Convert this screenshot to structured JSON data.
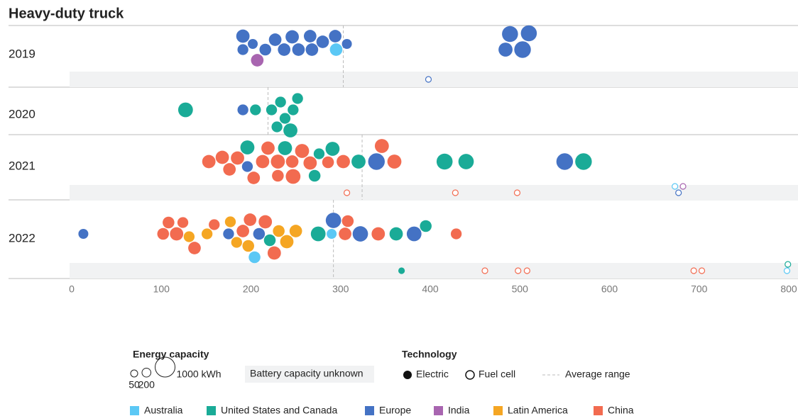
{
  "chart_data": {
    "type": "beeswarm",
    "title": "Heavy-duty truck",
    "xlim": [
      0,
      800
    ],
    "xticks": [
      0,
      100,
      200,
      300,
      400,
      500,
      600,
      700,
      800
    ],
    "regions": [
      {
        "name": "Australia",
        "color": "#5bc8f5"
      },
      {
        "name": "United States and Canada",
        "color": "#1aab97"
      },
      {
        "name": "Europe",
        "color": "#4472c4"
      },
      {
        "name": "India",
        "color": "#a865b0"
      },
      {
        "name": "Latin America",
        "color": "#f5a623"
      },
      {
        "name": "China",
        "color": "#f26b50"
      }
    ],
    "size_title": "Energy capacity",
    "size_legend": [
      50,
      200,
      {
        "value": 1000,
        "label": "1000 kWh"
      }
    ],
    "unknown_label": "Battery capacity unknown",
    "technology_title": "Technology",
    "technologies": [
      "Electric",
      "Fuel cell"
    ],
    "average_label": "Average range",
    "rows": [
      {
        "year": "2019",
        "average": 303,
        "points": [
          {
            "range": 191,
            "capacity": 300,
            "region": "Europe"
          },
          {
            "range": 202,
            "capacity": 250,
            "region": "Europe"
          },
          {
            "range": 216,
            "capacity": 350,
            "region": "Europe"
          },
          {
            "range": 237,
            "capacity": 400,
            "region": "Europe"
          },
          {
            "range": 253,
            "capacity": 400,
            "region": "Europe"
          },
          {
            "range": 268,
            "capacity": 400,
            "region": "Europe"
          },
          {
            "range": 295,
            "capacity": 400,
            "region": "Australia"
          },
          {
            "range": 191,
            "capacity": 450,
            "region": "Europe"
          },
          {
            "range": 207,
            "capacity": 400,
            "region": "India"
          },
          {
            "range": 227,
            "capacity": 400,
            "region": "Europe"
          },
          {
            "range": 246,
            "capacity": 450,
            "region": "Europe"
          },
          {
            "range": 266,
            "capacity": 400,
            "region": "Europe"
          },
          {
            "range": 280,
            "capacity": 400,
            "region": "Europe"
          },
          {
            "range": 294,
            "capacity": 400,
            "region": "Europe"
          },
          {
            "range": 307,
            "capacity": 250,
            "region": "Europe"
          },
          {
            "range": 484,
            "capacity": 500,
            "region": "Europe"
          },
          {
            "range": 503,
            "capacity": 700,
            "region": "Europe"
          },
          {
            "range": 489,
            "capacity": 650,
            "region": "Europe"
          },
          {
            "range": 510,
            "capacity": 650,
            "region": "Europe"
          }
        ],
        "unknown": [
          {
            "range": 398,
            "region": "Europe",
            "technology": "Fuel cell"
          }
        ]
      },
      {
        "year": "2020",
        "average": 219,
        "points": [
          {
            "range": 127,
            "capacity": 550,
            "region": "United States and Canada"
          },
          {
            "range": 191,
            "capacity": 300,
            "region": "Europe"
          },
          {
            "range": 205,
            "capacity": 300,
            "region": "United States and Canada"
          },
          {
            "range": 223,
            "capacity": 300,
            "region": "United States and Canada"
          },
          {
            "range": 233,
            "capacity": 300,
            "region": "United States and Canada"
          },
          {
            "range": 247,
            "capacity": 300,
            "region": "United States and Canada"
          },
          {
            "range": 238,
            "capacity": 300,
            "region": "United States and Canada"
          },
          {
            "range": 252,
            "capacity": 300,
            "region": "United States and Canada"
          },
          {
            "range": 229,
            "capacity": 300,
            "region": "United States and Canada"
          },
          {
            "range": 244,
            "capacity": 500,
            "region": "United States and Canada"
          }
        ],
        "unknown": []
      },
      {
        "year": "2021",
        "average": 324,
        "points": [
          {
            "range": 153,
            "capacity": 450,
            "region": "China"
          },
          {
            "range": 168,
            "capacity": 450,
            "region": "China"
          },
          {
            "range": 176,
            "capacity": 400,
            "region": "China"
          },
          {
            "range": 185,
            "capacity": 450,
            "region": "China"
          },
          {
            "range": 196,
            "capacity": 300,
            "region": "Europe"
          },
          {
            "range": 196,
            "capacity": 500,
            "region": "United States and Canada"
          },
          {
            "range": 203,
            "capacity": 400,
            "region": "China"
          },
          {
            "range": 213,
            "capacity": 450,
            "region": "China"
          },
          {
            "range": 219,
            "capacity": 450,
            "region": "China"
          },
          {
            "range": 230,
            "capacity": 500,
            "region": "China"
          },
          {
            "range": 230,
            "capacity": 350,
            "region": "China"
          },
          {
            "range": 238,
            "capacity": 500,
            "region": "United States and Canada"
          },
          {
            "range": 246,
            "capacity": 400,
            "region": "China"
          },
          {
            "range": 247,
            "capacity": 550,
            "region": "China"
          },
          {
            "range": 257,
            "capacity": 500,
            "region": "China"
          },
          {
            "range": 266,
            "capacity": 450,
            "region": "China"
          },
          {
            "range": 271,
            "capacity": 350,
            "region": "United States and Canada"
          },
          {
            "range": 276,
            "capacity": 300,
            "region": "United States and Canada"
          },
          {
            "range": 286,
            "capacity": 350,
            "region": "China"
          },
          {
            "range": 291,
            "capacity": 500,
            "region": "United States and Canada"
          },
          {
            "range": 303,
            "capacity": 450,
            "region": "China"
          },
          {
            "range": 320,
            "capacity": 500,
            "region": "United States and Canada"
          },
          {
            "range": 340,
            "capacity": 700,
            "region": "Europe"
          },
          {
            "range": 346,
            "capacity": 500,
            "region": "China"
          },
          {
            "range": 360,
            "capacity": 500,
            "region": "China"
          },
          {
            "range": 416,
            "capacity": 650,
            "region": "United States and Canada"
          },
          {
            "range": 440,
            "capacity": 600,
            "region": "United States and Canada"
          },
          {
            "range": 550,
            "capacity": 700,
            "region": "Europe"
          },
          {
            "range": 571,
            "capacity": 700,
            "region": "United States and Canada"
          }
        ],
        "unknown": [
          {
            "range": 307,
            "region": "China",
            "technology": "Fuel cell"
          },
          {
            "range": 428,
            "region": "China",
            "technology": "Fuel cell"
          },
          {
            "range": 497,
            "region": "China",
            "technology": "Fuel cell"
          },
          {
            "range": 677,
            "region": "Europe",
            "technology": "Fuel cell"
          },
          {
            "range": 673,
            "region": "Australia",
            "technology": "Fuel cell"
          },
          {
            "range": 682,
            "region": "India",
            "technology": "Fuel cell"
          }
        ]
      },
      {
        "year": "2022",
        "average": 292,
        "points": [
          {
            "range": 13,
            "capacity": 250,
            "region": "Europe"
          },
          {
            "range": 102,
            "capacity": 350,
            "region": "China"
          },
          {
            "range": 108,
            "capacity": 350,
            "region": "China"
          },
          {
            "range": 117,
            "capacity": 450,
            "region": "China"
          },
          {
            "range": 124,
            "capacity": 300,
            "region": "China"
          },
          {
            "range": 131,
            "capacity": 300,
            "region": "Latin America"
          },
          {
            "range": 137,
            "capacity": 400,
            "region": "China"
          },
          {
            "range": 151,
            "capacity": 300,
            "region": "Latin America"
          },
          {
            "range": 159,
            "capacity": 300,
            "region": "China"
          },
          {
            "range": 175,
            "capacity": 300,
            "region": "Europe"
          },
          {
            "range": 177,
            "capacity": 300,
            "region": "Latin America"
          },
          {
            "range": 184,
            "capacity": 300,
            "region": "Latin America"
          },
          {
            "range": 191,
            "capacity": 400,
            "region": "China"
          },
          {
            "range": 197,
            "capacity": 350,
            "region": "Latin America"
          },
          {
            "range": 199,
            "capacity": 400,
            "region": "China"
          },
          {
            "range": 204,
            "capacity": 350,
            "region": "Australia"
          },
          {
            "range": 209,
            "capacity": 350,
            "region": "Europe"
          },
          {
            "range": 216,
            "capacity": 450,
            "region": "China"
          },
          {
            "range": 221,
            "capacity": 350,
            "region": "United States and Canada"
          },
          {
            "range": 226,
            "capacity": 450,
            "region": "China"
          },
          {
            "range": 231,
            "capacity": 350,
            "region": "Latin America"
          },
          {
            "range": 240,
            "capacity": 450,
            "region": "Latin America"
          },
          {
            "range": 250,
            "capacity": 400,
            "region": "Latin America"
          },
          {
            "range": 275,
            "capacity": 550,
            "region": "United States and Canada"
          },
          {
            "range": 290,
            "capacity": 250,
            "region": "Australia"
          },
          {
            "range": 292,
            "capacity": 600,
            "region": "Europe"
          },
          {
            "range": 305,
            "capacity": 400,
            "region": "China"
          },
          {
            "range": 308,
            "capacity": 350,
            "region": "China"
          },
          {
            "range": 322,
            "capacity": 600,
            "region": "Europe"
          },
          {
            "range": 342,
            "capacity": 450,
            "region": "China"
          },
          {
            "range": 362,
            "capacity": 450,
            "region": "United States and Canada"
          },
          {
            "range": 382,
            "capacity": 550,
            "region": "Europe"
          },
          {
            "range": 395,
            "capacity": 350,
            "region": "United States and Canada"
          },
          {
            "range": 429,
            "capacity": 300,
            "region": "China"
          }
        ],
        "unknown": [
          {
            "range": 368,
            "region": "United States and Canada",
            "technology": "Electric"
          },
          {
            "range": 461,
            "region": "China",
            "technology": "Fuel cell"
          },
          {
            "range": 498,
            "region": "China",
            "technology": "Fuel cell"
          },
          {
            "range": 508,
            "region": "China",
            "technology": "Fuel cell"
          },
          {
            "range": 694,
            "region": "China",
            "technology": "Fuel cell"
          },
          {
            "range": 703,
            "region": "China",
            "technology": "Fuel cell"
          },
          {
            "range": 798,
            "region": "Australia",
            "technology": "Fuel cell"
          },
          {
            "range": 799,
            "region": "United States and Canada",
            "technology": "Fuel cell"
          }
        ]
      }
    ]
  }
}
